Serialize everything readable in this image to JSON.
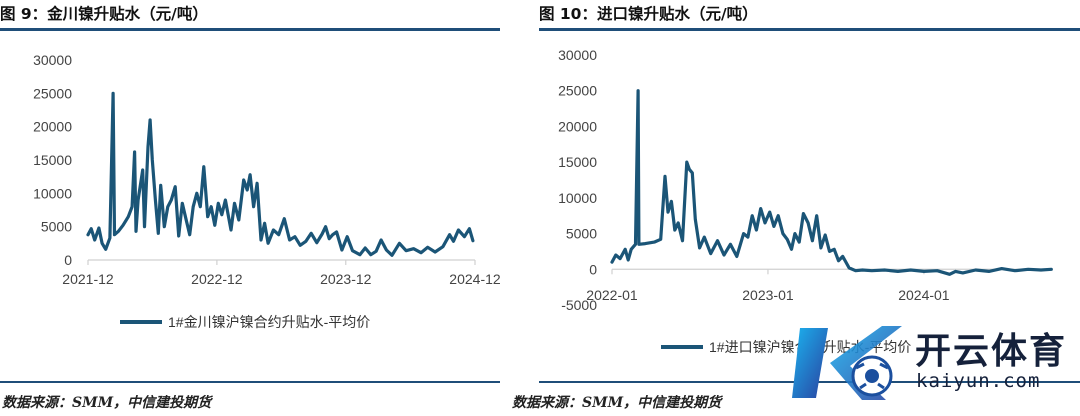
{
  "figure_left": {
    "title": "图 9：金川镍升贴水（元/吨）",
    "source": "数据来源：SMM，中信建投期货"
  },
  "figure_right": {
    "title": "图 10：进口镍升贴水（元/吨）",
    "source": "数据来源：SMM，中信建投期货"
  },
  "watermark": {
    "brand_cn": "开云体育",
    "brand_en": "kaiyun.com"
  },
  "colors": {
    "series": "#1b5577",
    "rule": "#1f4e79",
    "axis": "#d0d0d0"
  },
  "chart_data": [
    {
      "type": "line",
      "title": "",
      "xlabel": "",
      "ylabel": "",
      "ylim": [
        0,
        30000
      ],
      "yticks": [
        0,
        5000,
        10000,
        15000,
        20000,
        25000,
        30000
      ],
      "xlim": [
        "2021-12",
        "2024-12"
      ],
      "xticks": [
        "2021-12",
        "2022-12",
        "2023-12",
        "2024-12"
      ],
      "grid": false,
      "legend_position": "bottom",
      "series": [
        {
          "name": "1#金川镍沪镍合约升贴水-平均价",
          "color": "#1b5577",
          "points": [
            [
              "2021-12-01",
              3800
            ],
            [
              "2021-12-10",
              4700
            ],
            [
              "2021-12-20",
              3000
            ],
            [
              "2022-01-01",
              4800
            ],
            [
              "2022-01-10",
              2500
            ],
            [
              "2022-01-20",
              1600
            ],
            [
              "2022-02-01",
              3300
            ],
            [
              "2022-02-10",
              25000
            ],
            [
              "2022-02-14",
              3800
            ],
            [
              "2022-02-25",
              4300
            ],
            [
              "2022-03-10",
              5200
            ],
            [
              "2022-03-25",
              6500
            ],
            [
              "2022-04-05",
              8000
            ],
            [
              "2022-04-12",
              16200
            ],
            [
              "2022-04-16",
              4300
            ],
            [
              "2022-04-22",
              9000
            ],
            [
              "2022-05-05",
              13500
            ],
            [
              "2022-05-10",
              5000
            ],
            [
              "2022-05-20",
              17000
            ],
            [
              "2022-05-26",
              21000
            ],
            [
              "2022-06-01",
              15000
            ],
            [
              "2022-06-10",
              9000
            ],
            [
              "2022-06-18",
              4000
            ],
            [
              "2022-06-25",
              11200
            ],
            [
              "2022-07-05",
              5000
            ],
            [
              "2022-07-15",
              8000
            ],
            [
              "2022-07-25",
              9000
            ],
            [
              "2022-08-05",
              11000
            ],
            [
              "2022-08-15",
              3600
            ],
            [
              "2022-08-25",
              8500
            ],
            [
              "2022-09-05",
              6000
            ],
            [
              "2022-09-15",
              3800
            ],
            [
              "2022-09-25",
              8000
            ],
            [
              "2022-10-05",
              10000
            ],
            [
              "2022-10-15",
              8000
            ],
            [
              "2022-10-25",
              14000
            ],
            [
              "2022-11-05",
              6500
            ],
            [
              "2022-11-15",
              8000
            ],
            [
              "2022-11-25",
              5200
            ],
            [
              "2022-12-05",
              8500
            ],
            [
              "2022-12-15",
              6800
            ],
            [
              "2022-12-25",
              9000
            ],
            [
              "2023-01-10",
              4500
            ],
            [
              "2023-01-20",
              8500
            ],
            [
              "2023-02-01",
              6000
            ],
            [
              "2023-02-15",
              12000
            ],
            [
              "2023-02-25",
              10500
            ],
            [
              "2023-03-05",
              12800
            ],
            [
              "2023-03-15",
              8000
            ],
            [
              "2023-03-25",
              11500
            ],
            [
              "2023-04-05",
              3000
            ],
            [
              "2023-04-15",
              5500
            ],
            [
              "2023-04-25",
              2500
            ],
            [
              "2023-05-10",
              4500
            ],
            [
              "2023-05-25",
              3800
            ],
            [
              "2023-06-10",
              6200
            ],
            [
              "2023-06-25",
              3000
            ],
            [
              "2023-07-10",
              3500
            ],
            [
              "2023-07-25",
              2200
            ],
            [
              "2023-08-10",
              2800
            ],
            [
              "2023-08-25",
              4000
            ],
            [
              "2023-09-10",
              2600
            ],
            [
              "2023-09-25",
              3900
            ],
            [
              "2023-10-05",
              5000
            ],
            [
              "2023-10-15",
              3200
            ],
            [
              "2023-10-25",
              3800
            ],
            [
              "2023-11-05",
              4200
            ],
            [
              "2023-11-20",
              1500
            ],
            [
              "2023-12-05",
              3500
            ],
            [
              "2023-12-20",
              1400
            ],
            [
              "2024-01-10",
              800
            ],
            [
              "2024-01-25",
              1800
            ],
            [
              "2024-02-10",
              800
            ],
            [
              "2024-02-25",
              1300
            ],
            [
              "2024-03-10",
              3000
            ],
            [
              "2024-03-25",
              1500
            ],
            [
              "2024-04-10",
              700
            ],
            [
              "2024-05-01",
              2500
            ],
            [
              "2024-05-20",
              1400
            ],
            [
              "2024-06-10",
              1700
            ],
            [
              "2024-07-01",
              1100
            ],
            [
              "2024-07-20",
              1900
            ],
            [
              "2024-08-10",
              1200
            ],
            [
              "2024-09-01",
              2000
            ],
            [
              "2024-09-20",
              3800
            ],
            [
              "2024-10-01",
              2800
            ],
            [
              "2024-10-15",
              4500
            ],
            [
              "2024-11-01",
              3500
            ],
            [
              "2024-11-15",
              4700
            ],
            [
              "2024-11-25",
              2900
            ]
          ]
        }
      ]
    },
    {
      "type": "line",
      "title": "",
      "xlabel": "",
      "ylabel": "",
      "ylim": [
        -5000,
        30000
      ],
      "yticks": [
        -5000,
        0,
        5000,
        10000,
        15000,
        20000,
        25000,
        30000
      ],
      "xlim": [
        "2022-01",
        "2024-10"
      ],
      "xticks": [
        "2022-01",
        "2023-01",
        "2024-01"
      ],
      "grid": false,
      "legend_position": "bottom",
      "series": [
        {
          "name": "1#进口镍沪镍合约升贴水-平均价",
          "color": "#1b5577",
          "points": [
            [
              "2022-01-01",
              1000
            ],
            [
              "2022-01-10",
              2000
            ],
            [
              "2022-01-20",
              1500
            ],
            [
              "2022-02-01",
              2800
            ],
            [
              "2022-02-08",
              1300
            ],
            [
              "2022-02-15",
              2800
            ],
            [
              "2022-02-25",
              3500
            ],
            [
              "2022-03-03",
              25000
            ],
            [
              "2022-03-05",
              3500
            ],
            [
              "2022-03-20",
              3600
            ],
            [
              "2022-04-10",
              3800
            ],
            [
              "2022-04-25",
              4200
            ],
            [
              "2022-05-05",
              13000
            ],
            [
              "2022-05-12",
              8000
            ],
            [
              "2022-05-20",
              9500
            ],
            [
              "2022-05-28",
              5500
            ],
            [
              "2022-06-05",
              6500
            ],
            [
              "2022-06-15",
              4000
            ],
            [
              "2022-06-25",
              15000
            ],
            [
              "2022-07-01",
              14000
            ],
            [
              "2022-07-08",
              13500
            ],
            [
              "2022-07-15",
              7000
            ],
            [
              "2022-07-25",
              3000
            ],
            [
              "2022-08-05",
              4500
            ],
            [
              "2022-08-20",
              2200
            ],
            [
              "2022-09-05",
              4000
            ],
            [
              "2022-09-20",
              2000
            ],
            [
              "2022-10-05",
              3500
            ],
            [
              "2022-10-20",
              1800
            ],
            [
              "2022-11-05",
              5000
            ],
            [
              "2022-11-15",
              4500
            ],
            [
              "2022-11-25",
              7500
            ],
            [
              "2022-12-05",
              5500
            ],
            [
              "2022-12-15",
              8500
            ],
            [
              "2022-12-25",
              6500
            ],
            [
              "2023-01-05",
              8000
            ],
            [
              "2023-01-15",
              6000
            ],
            [
              "2023-01-25",
              7500
            ],
            [
              "2023-02-05",
              5000
            ],
            [
              "2023-02-15",
              4200
            ],
            [
              "2023-02-25",
              2800
            ],
            [
              "2023-03-05",
              5000
            ],
            [
              "2023-03-15",
              3800
            ],
            [
              "2023-03-25",
              7800
            ],
            [
              "2023-04-05",
              6500
            ],
            [
              "2023-04-15",
              4000
            ],
            [
              "2023-04-25",
              7500
            ],
            [
              "2023-05-05",
              3000
            ],
            [
              "2023-05-15",
              4800
            ],
            [
              "2023-05-25",
              2500
            ],
            [
              "2023-06-05",
              2800
            ],
            [
              "2023-06-15",
              1200
            ],
            [
              "2023-06-25",
              1800
            ],
            [
              "2023-07-10",
              200
            ],
            [
              "2023-07-25",
              -200
            ],
            [
              "2023-08-10",
              -100
            ],
            [
              "2023-09-01",
              -200
            ],
            [
              "2023-10-01",
              -100
            ],
            [
              "2023-11-01",
              -300
            ],
            [
              "2023-12-01",
              -100
            ],
            [
              "2024-01-01",
              -300
            ],
            [
              "2024-02-01",
              -200
            ],
            [
              "2024-03-01",
              -700
            ],
            [
              "2024-03-15",
              -300
            ],
            [
              "2024-04-01",
              -500
            ],
            [
              "2024-05-01",
              -100
            ],
            [
              "2024-06-01",
              -300
            ],
            [
              "2024-07-01",
              100
            ],
            [
              "2024-08-01",
              -200
            ],
            [
              "2024-09-01",
              0
            ],
            [
              "2024-10-01",
              -100
            ],
            [
              "2024-10-25",
              0
            ]
          ]
        }
      ]
    }
  ]
}
